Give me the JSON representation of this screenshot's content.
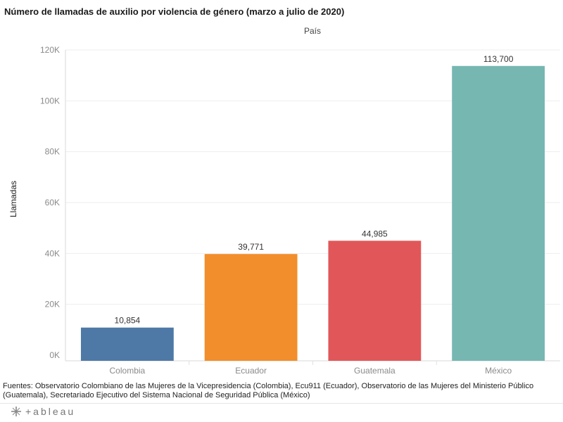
{
  "header": {
    "title": "Número de llamadas de auxilio por violencia de género (marzo a julio de 2020)",
    "column_header": "País"
  },
  "footer": {
    "sources": "Fuentes: Observatorio Colombiano de las Mujeres de la Vicepresidencia (Colombia), Ecu911 (Ecuador), Observatorio de las Mujeres del Ministerio Público (Guatemala), Secretariado Ejecutivo del Sistema Nacional de Seguridad Pública (México)",
    "brand": "+ableau",
    "brand_icon": "tableau-logo-icon"
  },
  "chart_data": {
    "type": "bar",
    "title": "Número de llamadas de auxilio por violencia de género (marzo a julio de 2020)",
    "xlabel": "País",
    "ylabel": "Llamadas",
    "categories": [
      "Colombia",
      "Ecuador",
      "Guatemala",
      "México"
    ],
    "values": [
      10854,
      39771,
      44985,
      113700
    ],
    "value_labels": [
      "10,854",
      "39,771",
      "44,985",
      "113,700"
    ],
    "colors": [
      "#4e79a7",
      "#f28e2b",
      "#e15759",
      "#76b7b2"
    ],
    "yticks": [
      0,
      20000,
      40000,
      60000,
      80000,
      100000,
      120000
    ],
    "ytick_labels": [
      "0K",
      "20K",
      "40K",
      "60K",
      "80K",
      "100K",
      "120K"
    ],
    "ylim": [
      0,
      120000
    ],
    "grid": true,
    "legend": "none"
  }
}
